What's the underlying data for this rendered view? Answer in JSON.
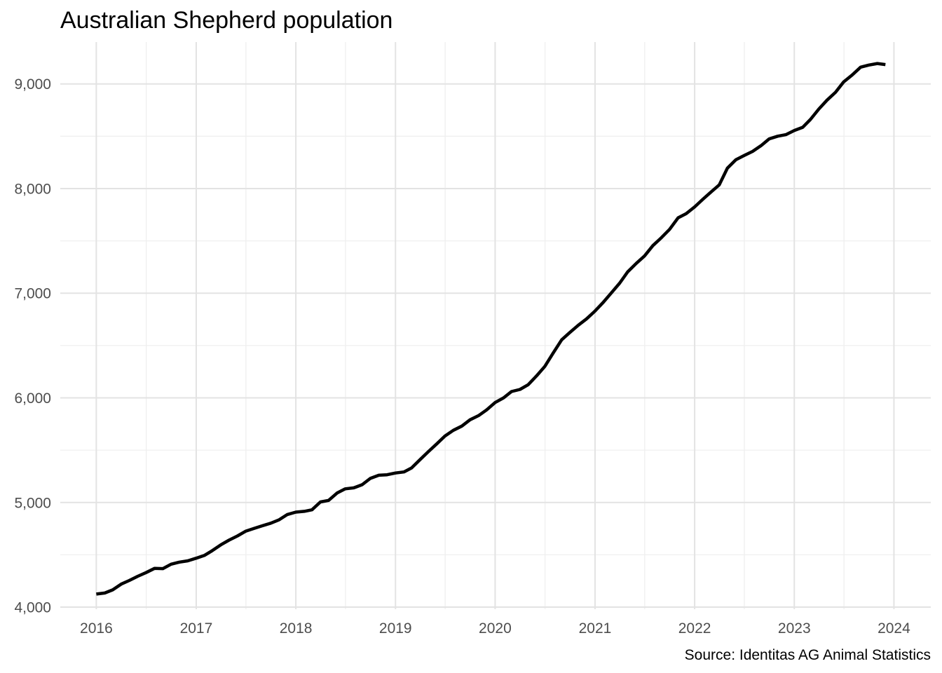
{
  "chart_data": {
    "type": "line",
    "title": "Australian Shepherd population",
    "caption": "Source: Identitas AG Animal Statistics",
    "xlabel": "",
    "ylabel": "",
    "x_ticks": [
      "2016",
      "2017",
      "2018",
      "2019",
      "2020",
      "2021",
      "2022",
      "2023",
      "2024"
    ],
    "y_ticks": [
      "4,000",
      "5,000",
      "6,000",
      "7,000",
      "8,000",
      "9,000"
    ],
    "xlim": [
      "2015-08-22",
      "2024-05-15"
    ],
    "ylim": [
      3980,
      9400
    ],
    "grid": true,
    "line_color": "#000000",
    "series": [
      {
        "x": [
          "2016-01-01",
          "2016-02-01",
          "2016-03-01",
          "2016-04-01",
          "2016-05-01",
          "2016-06-01",
          "2016-07-01",
          "2016-08-01",
          "2016-09-01",
          "2016-10-01",
          "2016-11-01",
          "2016-12-01",
          "2017-01-01",
          "2017-02-01",
          "2017-03-01",
          "2017-04-01",
          "2017-05-01",
          "2017-06-01",
          "2017-07-01",
          "2017-08-01",
          "2017-09-01",
          "2017-10-01",
          "2017-11-01",
          "2017-12-01",
          "2018-01-01",
          "2018-02-01",
          "2018-03-01",
          "2018-04-01",
          "2018-05-01",
          "2018-06-01",
          "2018-07-01",
          "2018-08-01",
          "2018-09-01",
          "2018-10-01",
          "2018-11-01",
          "2018-12-01",
          "2019-01-01",
          "2019-02-01",
          "2019-03-01",
          "2019-04-01",
          "2019-05-01",
          "2019-06-01",
          "2019-07-01",
          "2019-08-01",
          "2019-09-01",
          "2019-10-01",
          "2019-11-01",
          "2019-12-01",
          "2020-01-01",
          "2020-02-01",
          "2020-03-01",
          "2020-04-01",
          "2020-05-01",
          "2020-06-01",
          "2020-07-01",
          "2020-08-01",
          "2020-09-01",
          "2020-10-01",
          "2020-11-01",
          "2020-12-01",
          "2021-01-01",
          "2021-02-01",
          "2021-03-01",
          "2021-04-01",
          "2021-05-01",
          "2021-06-01",
          "2021-07-01",
          "2021-08-01",
          "2021-09-01",
          "2021-10-01",
          "2021-11-01",
          "2021-12-01",
          "2022-01-01",
          "2022-02-01",
          "2022-03-01",
          "2022-04-01",
          "2022-05-01",
          "2022-06-01",
          "2022-07-01",
          "2022-08-01",
          "2022-09-01",
          "2022-10-01",
          "2022-11-01",
          "2022-12-01",
          "2023-01-01",
          "2023-02-01",
          "2023-03-01",
          "2023-04-01",
          "2023-05-01",
          "2023-06-01",
          "2023-07-01",
          "2023-08-01",
          "2023-09-01",
          "2023-10-01",
          "2023-11-01",
          "2023-12-01"
        ],
        "values": [
          4125,
          4135,
          4165,
          4220,
          4255,
          4295,
          4330,
          4370,
          4368,
          4410,
          4430,
          4442,
          4468,
          4495,
          4540,
          4595,
          4640,
          4680,
          4725,
          4752,
          4778,
          4802,
          4835,
          4885,
          4908,
          4915,
          4930,
          5005,
          5020,
          5090,
          5130,
          5140,
          5170,
          5230,
          5260,
          5265,
          5282,
          5292,
          5330,
          5410,
          5485,
          5560,
          5635,
          5690,
          5730,
          5790,
          5830,
          5885,
          5955,
          6000,
          6060,
          6080,
          6125,
          6210,
          6300,
          6430,
          6555,
          6625,
          6695,
          6755,
          6830,
          6915,
          7000,
          7095,
          7205,
          7285,
          7355,
          7455,
          7530,
          7610,
          7720,
          7760,
          7825,
          7900,
          7965,
          8035,
          8195,
          8275,
          8315,
          8355,
          8410,
          8475,
          8500,
          8515,
          8555,
          8585,
          8660,
          8760,
          8845,
          8920,
          9020,
          9085,
          9160,
          9180,
          9195,
          9185
        ]
      }
    ]
  }
}
